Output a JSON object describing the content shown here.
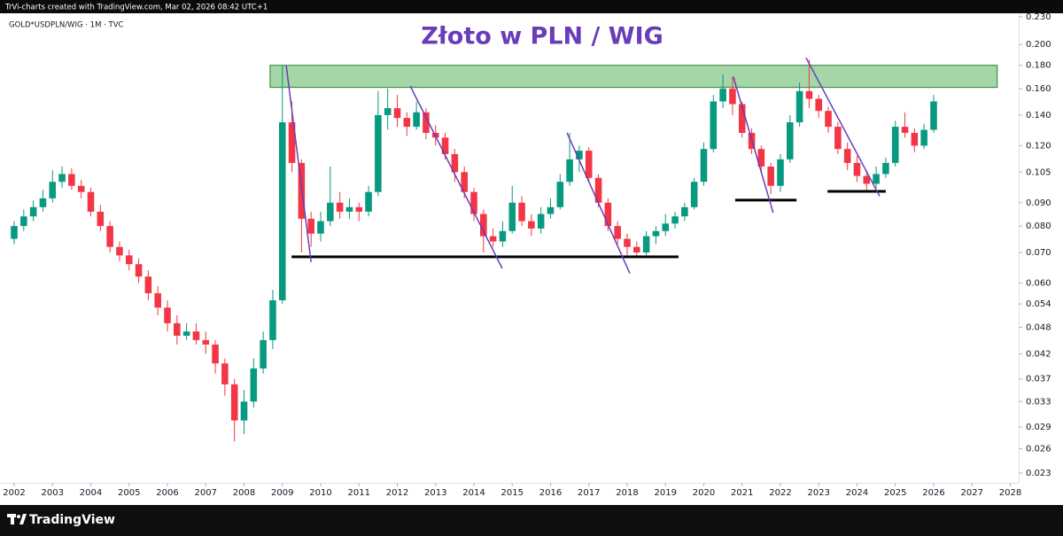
{
  "header": "TrVi-charts created with TradingView.com, Mar 02, 2026 08:42 UTC+1",
  "footer": "TradingView",
  "chart_data": {
    "type": "candlestick",
    "title": "Złoto w PLN / WIG",
    "symbol": "GOLD*USDPLN/WIG · 1M · TVC",
    "log_scale": true,
    "up_color": "#089981",
    "down_color": "#f23645",
    "xlim": [
      2001.63,
      2028.22
    ],
    "xticks": [
      2002,
      2003,
      2004,
      2005,
      2006,
      2007,
      2008,
      2009,
      2010,
      2011,
      2012,
      2013,
      2014,
      2015,
      2016,
      2017,
      2018,
      2019,
      2020,
      2021,
      2022,
      2023,
      2024,
      2025,
      2026,
      2027,
      2028
    ],
    "ylim": [
      0.0219,
      0.234
    ],
    "yticks": [
      {
        "value": 0.23,
        "label": "0.230"
      },
      {
        "value": 0.2,
        "label": "0.200"
      },
      {
        "value": 0.18,
        "label": "0.180"
      },
      {
        "value": 0.16,
        "label": "0.160"
      },
      {
        "value": 0.14,
        "label": "0.140"
      },
      {
        "value": 0.12,
        "label": "0.120"
      },
      {
        "value": 0.105,
        "label": "0.105"
      },
      {
        "value": 0.09,
        "label": "0.090"
      },
      {
        "value": 0.08,
        "label": "0.080"
      },
      {
        "value": 0.07,
        "label": "0.070"
      },
      {
        "value": 0.06,
        "label": "0.060"
      },
      {
        "value": 0.054,
        "label": "0.054"
      },
      {
        "value": 0.048,
        "label": "0.048"
      },
      {
        "value": 0.042,
        "label": "0.042"
      },
      {
        "value": 0.037,
        "label": "0.037"
      },
      {
        "value": 0.033,
        "label": "0.033"
      },
      {
        "value": 0.029,
        "label": "0.029"
      },
      {
        "value": 0.026,
        "label": "0.026"
      },
      {
        "value": 0.023,
        "label": "0.023"
      }
    ],
    "x": [
      2002,
      2002.25,
      2002.5,
      2002.75,
      2003,
      2003.25,
      2003.5,
      2003.75,
      2004,
      2004.25,
      2004.5,
      2004.75,
      2005,
      2005.25,
      2005.5,
      2005.75,
      2006,
      2006.25,
      2006.5,
      2006.75,
      2007,
      2007.25,
      2007.5,
      2007.75,
      2008,
      2008.25,
      2008.5,
      2008.75,
      2009,
      2009.25,
      2009.5,
      2009.75,
      2010,
      2010.25,
      2010.5,
      2010.75,
      2011,
      2011.25,
      2011.5,
      2011.75,
      2012,
      2012.25,
      2012.5,
      2012.75,
      2013,
      2013.25,
      2013.5,
      2013.75,
      2014,
      2014.25,
      2014.5,
      2014.75,
      2015,
      2015.25,
      2015.5,
      2015.75,
      2016,
      2016.25,
      2016.5,
      2016.75,
      2017,
      2017.25,
      2017.5,
      2017.75,
      2018,
      2018.25,
      2018.5,
      2018.75,
      2019,
      2019.25,
      2019.5,
      2019.75,
      2020,
      2020.25,
      2020.5,
      2020.75,
      2021,
      2021.25,
      2021.5,
      2021.75,
      2022,
      2022.25,
      2022.5,
      2022.75,
      2023,
      2023.25,
      2023.5,
      2023.75,
      2024,
      2024.25,
      2024.5,
      2024.75,
      2025,
      2025.25,
      2025.5,
      2025.75,
      2026
    ],
    "open": [
      0.075,
      0.08,
      0.084,
      0.088,
      0.092,
      0.1,
      0.104,
      0.098,
      0.095,
      0.086,
      0.08,
      0.072,
      0.069,
      0.066,
      0.062,
      0.057,
      0.053,
      0.049,
      0.046,
      0.047,
      0.045,
      0.044,
      0.04,
      0.036,
      0.03,
      0.033,
      0.039,
      0.045,
      0.055,
      0.135,
      0.11,
      0.083,
      0.077,
      0.082,
      0.09,
      0.086,
      0.088,
      0.086,
      0.095,
      0.14,
      0.145,
      0.138,
      0.132,
      0.142,
      0.128,
      0.125,
      0.115,
      0.105,
      0.095,
      0.085,
      0.076,
      0.074,
      0.078,
      0.09,
      0.082,
      0.079,
      0.085,
      0.088,
      0.1,
      0.112,
      0.117,
      0.102,
      0.09,
      0.08,
      0.075,
      0.072,
      0.07,
      0.076,
      0.078,
      0.081,
      0.084,
      0.088,
      0.1,
      0.118,
      0.15,
      0.16,
      0.148,
      0.128,
      0.118,
      0.108,
      0.098,
      0.112,
      0.135,
      0.158,
      0.152,
      0.143,
      0.132,
      0.118,
      0.11,
      0.103,
      0.099,
      0.104,
      0.11,
      0.132,
      0.128,
      0.12,
      0.13
    ],
    "high": [
      0.082,
      0.087,
      0.091,
      0.096,
      0.106,
      0.108,
      0.107,
      0.101,
      0.097,
      0.089,
      0.082,
      0.074,
      0.071,
      0.068,
      0.064,
      0.059,
      0.055,
      0.051,
      0.049,
      0.049,
      0.047,
      0.045,
      0.041,
      0.037,
      0.035,
      0.041,
      0.047,
      0.058,
      0.18,
      0.15,
      0.112,
      0.086,
      0.086,
      0.108,
      0.095,
      0.092,
      0.09,
      0.098,
      0.158,
      0.16,
      0.155,
      0.142,
      0.15,
      0.145,
      0.133,
      0.128,
      0.118,
      0.108,
      0.097,
      0.087,
      0.079,
      0.082,
      0.098,
      0.093,
      0.085,
      0.088,
      0.092,
      0.104,
      0.128,
      0.12,
      0.119,
      0.104,
      0.092,
      0.082,
      0.077,
      0.074,
      0.078,
      0.08,
      0.085,
      0.086,
      0.09,
      0.102,
      0.122,
      0.155,
      0.172,
      0.17,
      0.15,
      0.131,
      0.12,
      0.11,
      0.115,
      0.14,
      0.165,
      0.185,
      0.155,
      0.146,
      0.135,
      0.122,
      0.114,
      0.106,
      0.108,
      0.113,
      0.136,
      0.142,
      0.131,
      0.134,
      0.155
    ],
    "low": [
      0.073,
      0.078,
      0.082,
      0.086,
      0.09,
      0.097,
      0.096,
      0.092,
      0.084,
      0.078,
      0.07,
      0.067,
      0.064,
      0.06,
      0.055,
      0.051,
      0.047,
      0.044,
      0.045,
      0.044,
      0.042,
      0.038,
      0.034,
      0.027,
      0.028,
      0.032,
      0.038,
      0.043,
      0.054,
      0.105,
      0.07,
      0.072,
      0.074,
      0.08,
      0.083,
      0.083,
      0.082,
      0.084,
      0.093,
      0.13,
      0.132,
      0.126,
      0.13,
      0.124,
      0.12,
      0.112,
      0.1,
      0.092,
      0.082,
      0.07,
      0.072,
      0.072,
      0.077,
      0.08,
      0.076,
      0.077,
      0.083,
      0.087,
      0.098,
      0.105,
      0.1,
      0.088,
      0.078,
      0.073,
      0.069,
      0.068,
      0.069,
      0.073,
      0.076,
      0.079,
      0.082,
      0.087,
      0.098,
      0.116,
      0.145,
      0.14,
      0.125,
      0.115,
      0.105,
      0.094,
      0.095,
      0.11,
      0.132,
      0.145,
      0.138,
      0.128,
      0.115,
      0.106,
      0.1,
      0.096,
      0.097,
      0.102,
      0.108,
      0.125,
      0.116,
      0.118,
      0.128
    ],
    "close": [
      0.08,
      0.084,
      0.088,
      0.092,
      0.1,
      0.104,
      0.098,
      0.095,
      0.086,
      0.08,
      0.072,
      0.069,
      0.066,
      0.062,
      0.057,
      0.053,
      0.049,
      0.046,
      0.047,
      0.045,
      0.044,
      0.04,
      0.036,
      0.03,
      0.033,
      0.039,
      0.045,
      0.055,
      0.135,
      0.11,
      0.083,
      0.077,
      0.082,
      0.09,
      0.086,
      0.088,
      0.086,
      0.095,
      0.14,
      0.145,
      0.138,
      0.132,
      0.142,
      0.128,
      0.125,
      0.115,
      0.105,
      0.095,
      0.085,
      0.076,
      0.074,
      0.078,
      0.09,
      0.082,
      0.079,
      0.085,
      0.088,
      0.1,
      0.112,
      0.117,
      0.102,
      0.09,
      0.08,
      0.075,
      0.072,
      0.07,
      0.076,
      0.078,
      0.081,
      0.084,
      0.088,
      0.1,
      0.118,
      0.15,
      0.16,
      0.148,
      0.128,
      0.118,
      0.108,
      0.098,
      0.112,
      0.135,
      0.158,
      0.152,
      0.143,
      0.132,
      0.118,
      0.11,
      0.103,
      0.099,
      0.104,
      0.11,
      0.132,
      0.128,
      0.12,
      0.13,
      0.15
    ],
    "zones": [
      {
        "x": [
          2008.68,
          2027.66
        ],
        "y": [
          0.161,
          0.18
        ],
        "color": "#a5d6a7",
        "border": "#2e7d32"
      }
    ],
    "levels": [
      {
        "x": [
          2009.24,
          2019.34
        ],
        "y": 0.0685,
        "color": "#000000"
      },
      {
        "x": [
          2020.82,
          2022.42
        ],
        "y": 0.0912,
        "color": "#000000"
      },
      {
        "x": [
          2023.23,
          2024.75
        ],
        "y": 0.0953,
        "color": "#000000"
      }
    ],
    "trendlines": [
      {
        "x": [
          2009.1,
          2009.75
        ],
        "y": [
          0.18,
          0.0667
        ],
        "color": "#6a3db8"
      },
      {
        "x": [
          2012.34,
          2014.74
        ],
        "y": [
          0.162,
          0.0646
        ],
        "color": "#6a3db8"
      },
      {
        "x": [
          2016.43,
          2018.07
        ],
        "y": [
          0.128,
          0.063
        ],
        "color": "#6a3db8"
      },
      {
        "x": [
          2020.77,
          2021.81
        ],
        "y": [
          0.17,
          0.0856
        ],
        "color": "#6a3db8"
      },
      {
        "x": [
          2022.67,
          2024.59
        ],
        "y": [
          0.187,
          0.093
        ],
        "color": "#6a3db8"
      }
    ]
  }
}
